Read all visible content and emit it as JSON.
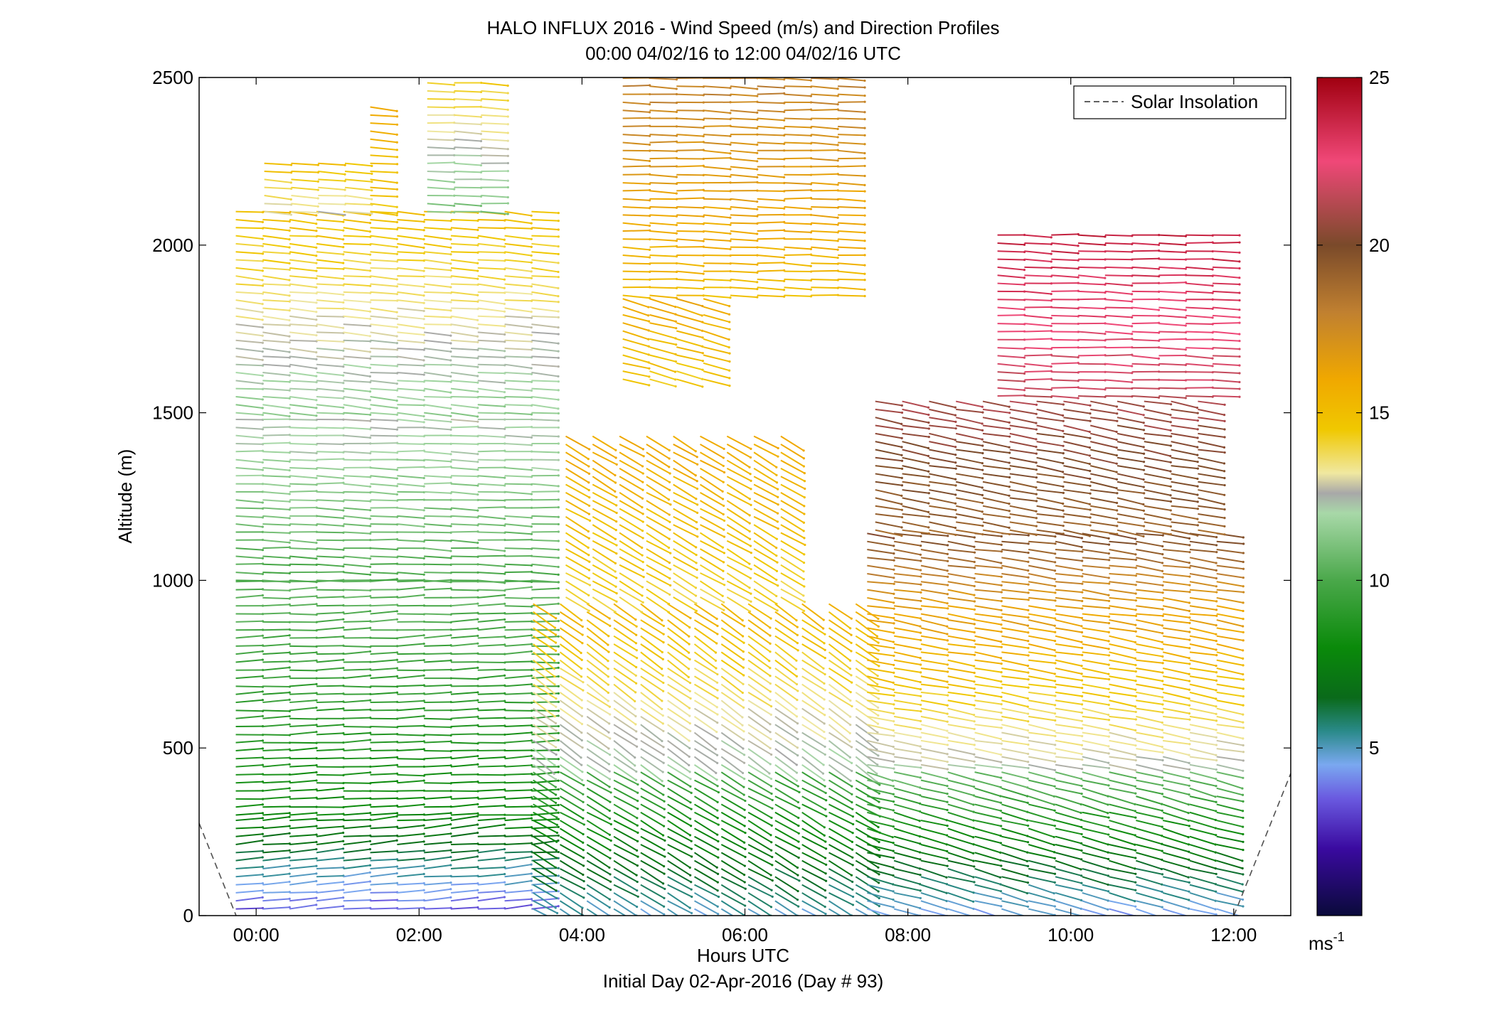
{
  "chart_data": {
    "type": "wind-barb-profile",
    "title": "HALO INFLUX 2016 - Wind Speed (m/s) and Direction Profiles",
    "subtitle": "00:00 04/02/16 to 12:00 04/02/16  UTC",
    "xlabel": "Hours UTC",
    "xlabel_sub": "Initial Day 02-Apr-2016 (Day # 93)",
    "ylabel": "Altitude (m)",
    "xlim_hours": [
      -0.7,
      12.7
    ],
    "ylim": [
      0,
      2500
    ],
    "x_ticks": [
      {
        "v": 0,
        "label": "00:00"
      },
      {
        "v": 2,
        "label": "02:00"
      },
      {
        "v": 4,
        "label": "04:00"
      },
      {
        "v": 6,
        "label": "06:00"
      },
      {
        "v": 8,
        "label": "08:00"
      },
      {
        "v": 10,
        "label": "10:00"
      },
      {
        "v": 12,
        "label": "12:00"
      }
    ],
    "y_ticks": [
      0,
      500,
      1000,
      1500,
      2000,
      2500
    ],
    "legend": {
      "label": "Solar Insolation",
      "position": "top-right"
    },
    "colorbar": {
      "min": 0,
      "max": 25,
      "ticks": [
        5,
        10,
        15,
        20,
        25
      ],
      "unit_label": "ms",
      "unit_exp": "-1",
      "stops": [
        {
          "v": 0,
          "c": "#0a0a3a"
        },
        {
          "v": 2,
          "c": "#3a0aa0"
        },
        {
          "v": 3.5,
          "c": "#6a5ae0"
        },
        {
          "v": 4.5,
          "c": "#7aa8f0"
        },
        {
          "v": 5.5,
          "c": "#2a8a8a"
        },
        {
          "v": 6.5,
          "c": "#0a6a1a"
        },
        {
          "v": 8,
          "c": "#0a8a0a"
        },
        {
          "v": 10,
          "c": "#4aa84a"
        },
        {
          "v": 12,
          "c": "#a8d8a8"
        },
        {
          "v": 12.6,
          "c": "#a8a8a8"
        },
        {
          "v": 13.2,
          "c": "#f0e8a0"
        },
        {
          "v": 14.5,
          "c": "#f0c800"
        },
        {
          "v": 16,
          "c": "#f0a800"
        },
        {
          "v": 18,
          "c": "#c08030"
        },
        {
          "v": 20,
          "c": "#7a4a2a"
        },
        {
          "v": 22.5,
          "c": "#f04878"
        },
        {
          "v": 25,
          "c": "#a00010"
        }
      ]
    },
    "wind_regions": [
      {
        "t0": -0.25,
        "t1": 3.4,
        "z0": 20,
        "z1": 300,
        "speed": [
          3.5,
          8
        ],
        "dir_deg": 265
      },
      {
        "t0": -0.25,
        "t1": 3.4,
        "z0": 300,
        "z1": 1000,
        "speed": [
          8,
          10.5
        ],
        "dir_deg": 268
      },
      {
        "t0": -0.25,
        "t1": 3.4,
        "z0": 1000,
        "z1": 1500,
        "speed": [
          10,
          12.5
        ],
        "dir_deg": 272
      },
      {
        "t0": -0.25,
        "t1": 3.4,
        "z0": 1500,
        "z1": 2100,
        "speed": [
          11.5,
          15
        ],
        "dir_deg": 275
      },
      {
        "t0": 0.1,
        "t1": 1.4,
        "z0": 2100,
        "z1": 2250,
        "speed": [
          13,
          15
        ],
        "dir_deg": 275
      },
      {
        "t0": 1.4,
        "t1": 1.7,
        "z0": 2100,
        "z1": 2420,
        "speed": [
          14.5,
          16
        ],
        "dir_deg": 275
      },
      {
        "t0": 2.1,
        "t1": 2.8,
        "z0": 2100,
        "z1": 2500,
        "speed": [
          11,
          14.5
        ],
        "dir_deg": 272
      },
      {
        "t0": 3.4,
        "t1": 7.5,
        "z0": 20,
        "z1": 450,
        "speed": [
          5,
          10
        ],
        "dir_deg": 300
      },
      {
        "t0": 3.4,
        "t1": 7.5,
        "z0": 450,
        "z1": 950,
        "speed": [
          12,
          15.5
        ],
        "dir_deg": 305
      },
      {
        "t0": 3.8,
        "t1": 6.6,
        "z0": 950,
        "z1": 1450,
        "speed": [
          14,
          16
        ],
        "dir_deg": 300
      },
      {
        "t0": 4.5,
        "t1": 7.4,
        "z0": 1850,
        "z1": 2500,
        "speed": [
          15,
          18
        ],
        "dir_deg": 272
      },
      {
        "t0": 4.5,
        "t1": 5.8,
        "z0": 1600,
        "z1": 1850,
        "speed": [
          14.5,
          16
        ],
        "dir_deg": 285
      },
      {
        "t0": 7.5,
        "t1": 11.8,
        "z0": 20,
        "z1": 450,
        "speed": [
          4.5,
          11
        ],
        "dir_deg": 285
      },
      {
        "t0": 7.5,
        "t1": 11.8,
        "z0": 450,
        "z1": 900,
        "speed": [
          12.5,
          16.5
        ],
        "dir_deg": 280
      },
      {
        "t0": 7.5,
        "t1": 11.8,
        "z0": 900,
        "z1": 1150,
        "speed": [
          16,
          20
        ],
        "dir_deg": 278
      },
      {
        "t0": 7.6,
        "t1": 11.8,
        "z0": 1150,
        "z1": 1550,
        "speed": [
          19,
          21
        ],
        "dir_deg": 280
      },
      {
        "t0": 9.1,
        "t1": 11.8,
        "z0": 1550,
        "z1": 2050,
        "speed": [
          21.5,
          24
        ],
        "dir_deg": 272
      }
    ]
  }
}
